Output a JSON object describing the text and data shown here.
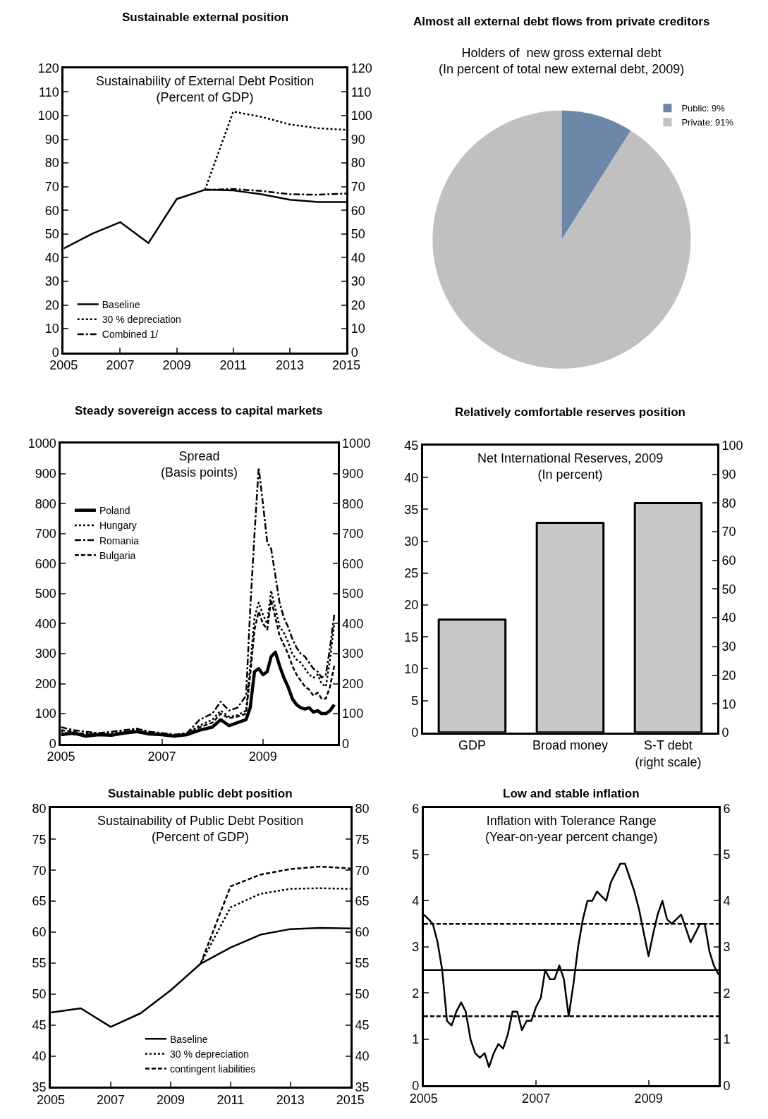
{
  "chart_data": [
    {
      "type": "line",
      "title": "Sustainable external position",
      "subtitle": "Sustainability of External Debt Position\n(Percent of GDP)",
      "x": [
        2005,
        2006,
        2007,
        2008,
        2009,
        2010,
        2011,
        2012,
        2013,
        2014,
        2015
      ],
      "series": [
        {
          "name": "Baseline",
          "color": "#000000",
          "line_style": "solid",
          "values": [
            43.9,
            50.1,
            55.0,
            46.2,
            64.8,
            68.7,
            68.4,
            66.8,
            64.5,
            63.5,
            63.5
          ]
        },
        {
          "name": "30 % depreciation",
          "color": "#000000",
          "line_style": "dotted",
          "values": [
            null,
            null,
            null,
            null,
            null,
            68.7,
            101.7,
            99.5,
            96.3,
            94.7,
            94.0
          ]
        },
        {
          "name": "Combined 1/",
          "color": "#000000",
          "line_style": "dashdot",
          "values": [
            null,
            null,
            null,
            null,
            null,
            68.7,
            69.0,
            68.2,
            66.8,
            66.6,
            67.1
          ]
        }
      ],
      "xlim": [
        2005,
        2015
      ],
      "xticks": [
        2005,
        2007,
        2009,
        2011,
        2013,
        2015
      ],
      "ylim": [
        0,
        120
      ],
      "yticks": [
        0,
        10,
        20,
        30,
        40,
        50,
        60,
        70,
        80,
        90,
        100,
        110,
        120
      ],
      "y2lim": [
        0,
        120
      ],
      "y2ticks": [
        0,
        10,
        20,
        30,
        40,
        50,
        60,
        70,
        80,
        90,
        100,
        110,
        120
      ],
      "legend": "bottom left"
    },
    {
      "type": "pie",
      "title": "Almost all external debt flows from private creditors",
      "subtitle": "Holders of  new gross external debt\n(In percent of total new external debt, 2009)",
      "categories": [
        "Public: 9%",
        "Private: 91%"
      ],
      "values": [
        9,
        91
      ],
      "colors": [
        "#6d87a8",
        "#c0c0c0"
      ],
      "legend": "top right"
    },
    {
      "type": "line",
      "title": "Steady sovereign access to capital markets",
      "subtitle": "Spread\n(Basis points)",
      "x": [
        "2005-01",
        "2005-04",
        "2005-07",
        "2005-10",
        "2006-01",
        "2006-04",
        "2006-07",
        "2006-10",
        "2007-01",
        "2007-04",
        "2007-07",
        "2007-10",
        "2008-01",
        "2008-03",
        "2008-05",
        "2008-07",
        "2008-09",
        "2008-10",
        "2008-11",
        "2008-12",
        "2009-01",
        "2009-02",
        "2009-03",
        "2009-04",
        "2009-05",
        "2009-06",
        "2009-07",
        "2009-08",
        "2009-09",
        "2009-10",
        "2009-11",
        "2009-12",
        "2010-01",
        "2010-02",
        "2010-03",
        "2010-04",
        "2010-05",
        "2010-06"
      ],
      "series": [
        {
          "name": "Poland",
          "color": "#000000",
          "line_style": "solid",
          "values": [
            30,
            35,
            25,
            30,
            28,
            35,
            40,
            32,
            30,
            25,
            30,
            45,
            55,
            80,
            60,
            70,
            80,
            120,
            240,
            250,
            230,
            240,
            290,
            305,
            260,
            220,
            190,
            150,
            130,
            120,
            115,
            120,
            105,
            110,
            100,
            100,
            110,
            130
          ]
        },
        {
          "name": "Hungary",
          "color": "#000000",
          "line_style": "dotted",
          "values": [
            40,
            30,
            35,
            30,
            35,
            40,
            50,
            40,
            35,
            30,
            35,
            60,
            80,
            110,
            90,
            95,
            110,
            260,
            420,
            470,
            430,
            400,
            510,
            450,
            390,
            370,
            340,
            300,
            280,
            270,
            250,
            230,
            220,
            230,
            200,
            190,
            280,
            400
          ]
        },
        {
          "name": "Romania",
          "color": "#000000",
          "line_style": "dashdot",
          "values": [
            55,
            45,
            40,
            35,
            40,
            45,
            50,
            40,
            35,
            30,
            35,
            80,
            100,
            140,
            110,
            120,
            160,
            450,
            700,
            920,
            800,
            670,
            650,
            560,
            470,
            420,
            390,
            350,
            320,
            300,
            290,
            270,
            250,
            240,
            220,
            230,
            320,
            430
          ]
        },
        {
          "name": "Bulgaria",
          "color": "#000000",
          "line_style": "dashed",
          "values": [
            45,
            40,
            30,
            35,
            30,
            38,
            45,
            35,
            32,
            28,
            32,
            55,
            70,
            100,
            85,
            90,
            100,
            230,
            380,
            440,
            400,
            380,
            480,
            420,
            360,
            330,
            300,
            260,
            230,
            210,
            190,
            180,
            160,
            170,
            150,
            150,
            190,
            260
          ]
        }
      ],
      "xlim": [
        "2005-01-01",
        "2010-06-24"
      ],
      "xticks": [
        "2005",
        "2007",
        "2009"
      ],
      "ylim": [
        0,
        1000
      ],
      "yticks": [
        0,
        100,
        200,
        300,
        400,
        500,
        600,
        700,
        800,
        900,
        1000
      ],
      "y2lim": [
        0,
        1000
      ],
      "y2ticks": [
        0,
        100,
        200,
        300,
        400,
        500,
        600,
        700,
        800,
        900,
        1000
      ],
      "legend": "top left"
    },
    {
      "type": "bar",
      "title": "Relatively comfortable reserves position",
      "subtitle": "Net International Reserves, 2009\n(In percent)",
      "categories": [
        "GDP",
        "Broad money",
        "S-T debt\n(right scale)"
      ],
      "series": [
        {
          "color": "#c8c8c8",
          "values": [
            17.7,
            32.9,
            null
          ]
        },
        {
          "color": "#c8c8c8",
          "axis": "y2",
          "values": [
            null,
            null,
            80
          ]
        }
      ],
      "ylim": [
        0,
        45
      ],
      "yticks": [
        0,
        5,
        10,
        15,
        20,
        25,
        30,
        35,
        40,
        45
      ],
      "y2lim": [
        0,
        100
      ],
      "y2ticks": [
        0,
        10,
        20,
        30,
        40,
        50,
        60,
        70,
        80,
        90,
        100
      ]
    },
    {
      "type": "line",
      "title": "Sustainable public debt position",
      "subtitle": "Sustainability of Public Debt Position\n(Percent of GDP)",
      "x": [
        2005,
        2006,
        2007,
        2008,
        2009,
        2010,
        2011,
        2012,
        2013,
        2014,
        2015
      ],
      "series": [
        {
          "name": "Baseline",
          "color": "#000000",
          "line_style": "solid",
          "values": [
            47.0,
            47.7,
            44.7,
            46.9,
            50.6,
            54.9,
            57.5,
            59.6,
            60.5,
            60.7,
            60.6
          ]
        },
        {
          "name": "30 % depreciation",
          "color": "#000000",
          "line_style": "dotted",
          "values": [
            null,
            null,
            null,
            null,
            null,
            54.9,
            64.0,
            66.2,
            67.0,
            67.1,
            67.0
          ]
        },
        {
          "name": "contingent liabilities",
          "color": "#000000",
          "line_style": "dashed",
          "values": [
            null,
            null,
            null,
            null,
            null,
            54.9,
            67.4,
            69.3,
            70.2,
            70.6,
            70.3
          ]
        }
      ],
      "xlim": [
        2005,
        2015
      ],
      "xticks": [
        2005,
        2007,
        2009,
        2011,
        2013,
        2015
      ],
      "ylim": [
        35,
        80
      ],
      "yticks": [
        35,
        40,
        45,
        50,
        55,
        60,
        65,
        70,
        75,
        80
      ],
      "y2lim": [
        35,
        80
      ],
      "y2ticks": [
        35,
        40,
        45,
        50,
        55,
        60,
        65,
        70,
        75,
        80
      ],
      "legend": "bottom"
    },
    {
      "type": "line",
      "title": "Low and stable inflation",
      "subtitle": "Inflation with Tolerance Range\n(Year-on-year percent change)",
      "x": [
        "2005-01",
        "2005-02",
        "2005-03",
        "2005-04",
        "2005-05",
        "2005-06",
        "2005-07",
        "2005-08",
        "2005-09",
        "2005-10",
        "2005-11",
        "2005-12",
        "2006-01",
        "2006-02",
        "2006-03",
        "2006-04",
        "2006-05",
        "2006-06",
        "2006-07",
        "2006-08",
        "2006-09",
        "2006-10",
        "2006-11",
        "2006-12",
        "2007-01",
        "2007-02",
        "2007-03",
        "2007-04",
        "2007-05",
        "2007-06",
        "2007-07",
        "2007-08",
        "2007-09",
        "2007-10",
        "2007-11",
        "2007-12",
        "2008-01",
        "2008-02",
        "2008-03",
        "2008-04",
        "2008-05",
        "2008-06",
        "2008-07",
        "2008-08",
        "2008-09",
        "2008-10",
        "2008-11",
        "2008-12",
        "2009-01",
        "2009-02",
        "2009-03",
        "2009-04",
        "2009-05",
        "2009-06",
        "2009-07",
        "2009-08",
        "2009-09",
        "2009-10",
        "2009-11",
        "2009-12",
        "2010-01",
        "2010-02",
        "2010-03",
        "2010-04"
      ],
      "series": [
        {
          "color": "#000000",
          "line_style": "solid",
          "values": [
            3.7,
            3.6,
            3.5,
            3.1,
            2.5,
            1.4,
            1.3,
            1.6,
            1.8,
            1.6,
            1.0,
            0.7,
            0.6,
            0.7,
            0.4,
            0.7,
            0.9,
            0.8,
            1.1,
            1.6,
            1.6,
            1.2,
            1.4,
            1.4,
            1.7,
            1.9,
            2.5,
            2.3,
            2.3,
            2.6,
            2.3,
            1.5,
            2.2,
            3.0,
            3.6,
            4.0,
            4.0,
            4.2,
            4.1,
            4.0,
            4.4,
            4.6,
            4.8,
            4.8,
            4.5,
            4.2,
            3.8,
            3.3,
            2.8,
            3.3,
            3.7,
            4.0,
            3.6,
            3.5,
            3.6,
            3.7,
            3.4,
            3.1,
            3.3,
            3.5,
            3.5,
            2.9,
            2.6,
            2.4
          ]
        }
      ],
      "xlim": [
        "2005-01",
        "2010-04"
      ],
      "xticks": [
        "2005",
        "2007",
        "2009"
      ],
      "ylim": [
        0,
        6
      ],
      "yticks": [
        0,
        1,
        2,
        3,
        4,
        5,
        6
      ],
      "y2lim": [
        0,
        6
      ],
      "y2ticks": [
        0,
        1,
        2,
        3,
        4,
        5,
        6
      ],
      "ref_lines": [
        {
          "axis": "y",
          "value": 3.5,
          "line_style": "dashed"
        },
        {
          "axis": "y",
          "value": 2.5,
          "line_style": "solid"
        },
        {
          "axis": "y",
          "value": 1.5,
          "line_style": "dashed"
        }
      ]
    }
  ]
}
